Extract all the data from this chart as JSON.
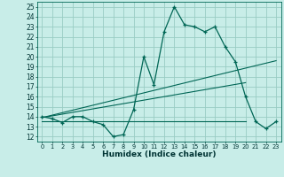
{
  "xlabel": "Humidex (Indice chaleur)",
  "bg_color": "#c8ede8",
  "grid_color": "#99ccc4",
  "line_color": "#006655",
  "xlim": [
    -0.5,
    23.5
  ],
  "ylim": [
    11.5,
    25.5
  ],
  "xticks": [
    0,
    1,
    2,
    3,
    4,
    5,
    6,
    7,
    8,
    9,
    10,
    11,
    12,
    13,
    14,
    15,
    16,
    17,
    18,
    19,
    20,
    21,
    22,
    23
  ],
  "yticks": [
    12,
    13,
    14,
    15,
    16,
    17,
    18,
    19,
    20,
    21,
    22,
    23,
    24,
    25
  ],
  "main_x": [
    0,
    1,
    2,
    3,
    4,
    5,
    6,
    7,
    8,
    9,
    10,
    11,
    12,
    13,
    14,
    15,
    16,
    17,
    18,
    19,
    20,
    21,
    22,
    23
  ],
  "main_y": [
    14.0,
    13.8,
    13.4,
    14.0,
    14.0,
    13.5,
    13.2,
    12.0,
    12.2,
    14.7,
    20.0,
    17.2,
    22.5,
    25.0,
    23.2,
    23.0,
    22.5,
    23.0,
    21.0,
    19.5,
    16.0,
    13.5,
    12.8,
    13.5
  ],
  "line2_x": [
    0,
    23
  ],
  "line2_y": [
    13.9,
    19.6
  ],
  "line3_x": [
    0,
    20
  ],
  "line3_y": [
    13.9,
    17.4
  ],
  "line4_x": [
    0,
    20
  ],
  "line4_y": [
    13.5,
    13.5
  ]
}
